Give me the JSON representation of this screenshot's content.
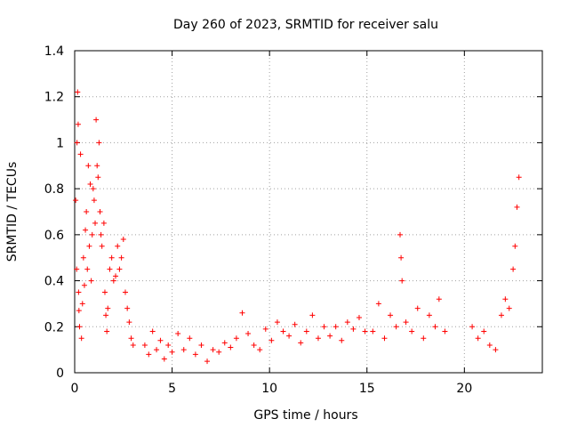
{
  "chart_data": {
    "type": "scatter",
    "title": "Day 260 of 2023, SRMTID for receiver salu",
    "xlabel": "GPS time / hours",
    "ylabel": "SRMTID / TECUs",
    "xlim": [
      0,
      24
    ],
    "ylim": [
      0,
      1.4
    ],
    "xticks": [
      0,
      5,
      10,
      15,
      20
    ],
    "xtick_labels": [
      "0",
      "5",
      "10",
      "15",
      "20"
    ],
    "yticks": [
      0,
      0.2,
      0.4,
      0.6,
      0.8,
      1,
      1.2,
      1.4
    ],
    "ytick_labels": [
      "0",
      "0.2",
      "0.4",
      "0.6",
      "0.8",
      "1",
      "1.2",
      "1.4"
    ],
    "grid": true,
    "marker": "+",
    "color": "#ff0000",
    "series": [
      {
        "name": "SRMTID",
        "points": [
          [
            0.05,
            0.75
          ],
          [
            0.1,
            0.45
          ],
          [
            0.12,
            1.0
          ],
          [
            0.15,
            1.22
          ],
          [
            0.18,
            1.08
          ],
          [
            0.2,
            0.35
          ],
          [
            0.22,
            0.27
          ],
          [
            0.25,
            0.2
          ],
          [
            0.3,
            0.95
          ],
          [
            0.35,
            0.15
          ],
          [
            0.4,
            0.3
          ],
          [
            0.45,
            0.5
          ],
          [
            0.5,
            0.38
          ],
          [
            0.55,
            0.62
          ],
          [
            0.6,
            0.7
          ],
          [
            0.65,
            0.45
          ],
          [
            0.7,
            0.9
          ],
          [
            0.75,
            0.55
          ],
          [
            0.8,
            0.82
          ],
          [
            0.85,
            0.4
          ],
          [
            0.9,
            0.6
          ],
          [
            0.95,
            0.8
          ],
          [
            1.0,
            0.75
          ],
          [
            1.05,
            0.65
          ],
          [
            1.1,
            1.1
          ],
          [
            1.15,
            0.9
          ],
          [
            1.2,
            0.85
          ],
          [
            1.25,
            1.0
          ],
          [
            1.3,
            0.7
          ],
          [
            1.35,
            0.6
          ],
          [
            1.4,
            0.55
          ],
          [
            1.5,
            0.65
          ],
          [
            1.55,
            0.35
          ],
          [
            1.6,
            0.25
          ],
          [
            1.65,
            0.18
          ],
          [
            1.7,
            0.28
          ],
          [
            1.8,
            0.45
          ],
          [
            1.9,
            0.5
          ],
          [
            2.0,
            0.4
          ],
          [
            2.1,
            0.42
          ],
          [
            2.2,
            0.55
          ],
          [
            2.3,
            0.45
          ],
          [
            2.4,
            0.5
          ],
          [
            2.5,
            0.58
          ],
          [
            2.6,
            0.35
          ],
          [
            2.7,
            0.28
          ],
          [
            2.8,
            0.22
          ],
          [
            2.9,
            0.15
          ],
          [
            3.0,
            0.12
          ],
          [
            3.6,
            0.12
          ],
          [
            3.8,
            0.08
          ],
          [
            4.0,
            0.18
          ],
          [
            4.2,
            0.1
          ],
          [
            4.4,
            0.14
          ],
          [
            4.6,
            0.06
          ],
          [
            4.8,
            0.12
          ],
          [
            5.0,
            0.09
          ],
          [
            5.3,
            0.17
          ],
          [
            5.6,
            0.1
          ],
          [
            5.9,
            0.15
          ],
          [
            6.2,
            0.08
          ],
          [
            6.5,
            0.12
          ],
          [
            6.8,
            0.05
          ],
          [
            7.1,
            0.1
          ],
          [
            7.4,
            0.09
          ],
          [
            7.7,
            0.13
          ],
          [
            8.0,
            0.11
          ],
          [
            8.3,
            0.15
          ],
          [
            8.6,
            0.26
          ],
          [
            8.9,
            0.17
          ],
          [
            9.2,
            0.12
          ],
          [
            9.5,
            0.1
          ],
          [
            9.8,
            0.19
          ],
          [
            10.1,
            0.14
          ],
          [
            10.4,
            0.22
          ],
          [
            10.7,
            0.18
          ],
          [
            11.0,
            0.16
          ],
          [
            11.3,
            0.21
          ],
          [
            11.6,
            0.13
          ],
          [
            11.9,
            0.18
          ],
          [
            12.2,
            0.25
          ],
          [
            12.5,
            0.15
          ],
          [
            12.8,
            0.2
          ],
          [
            13.1,
            0.16
          ],
          [
            13.4,
            0.2
          ],
          [
            13.7,
            0.14
          ],
          [
            14.0,
            0.22
          ],
          [
            14.3,
            0.19
          ],
          [
            14.6,
            0.24
          ],
          [
            14.9,
            0.18
          ],
          [
            15.3,
            0.18
          ],
          [
            15.6,
            0.3
          ],
          [
            15.9,
            0.15
          ],
          [
            16.2,
            0.25
          ],
          [
            16.5,
            0.2
          ],
          [
            16.7,
            0.6
          ],
          [
            16.75,
            0.5
          ],
          [
            16.8,
            0.4
          ],
          [
            17.0,
            0.22
          ],
          [
            17.3,
            0.18
          ],
          [
            17.6,
            0.28
          ],
          [
            17.9,
            0.15
          ],
          [
            18.2,
            0.25
          ],
          [
            18.5,
            0.2
          ],
          [
            18.7,
            0.32
          ],
          [
            19.0,
            0.18
          ],
          [
            20.4,
            0.2
          ],
          [
            20.7,
            0.15
          ],
          [
            21.0,
            0.18
          ],
          [
            21.3,
            0.12
          ],
          [
            21.6,
            0.1
          ],
          [
            21.9,
            0.25
          ],
          [
            22.1,
            0.32
          ],
          [
            22.3,
            0.28
          ],
          [
            22.5,
            0.45
          ],
          [
            22.6,
            0.55
          ],
          [
            22.7,
            0.72
          ],
          [
            22.8,
            0.85
          ]
        ]
      }
    ]
  }
}
